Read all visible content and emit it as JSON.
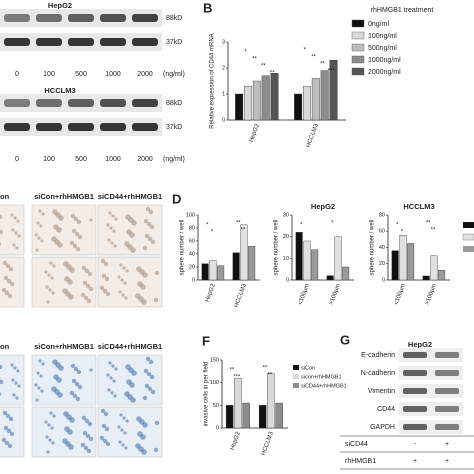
{
  "panel_a": {
    "blots": [
      {
        "cell": "HepG2",
        "markers": [
          "88kD",
          "37kD"
        ]
      },
      {
        "cell": "HCCLM3",
        "markers": [
          "88kD",
          "37kD"
        ]
      }
    ],
    "doses": [
      "0",
      "100",
      "500",
      "1000",
      "2000"
    ],
    "unit": "(ng/ml)"
  },
  "panel_b": {
    "label": "B",
    "chart": {
      "type": "bar",
      "ylabel": "Relative expression of CD44 mRNA",
      "categories": [
        "HepG2",
        "HCCLM3"
      ],
      "legend_title": "rhHMGB1 treatment",
      "series": [
        {
          "name": "0ng/ml",
          "color": "#111111",
          "values": [
            1.0,
            1.0
          ]
        },
        {
          "name": "100ng/ml",
          "color": "#d9d9d9",
          "values": [
            1.3,
            1.3
          ]
        },
        {
          "name": "500ng/ml",
          "color": "#bdbdbd",
          "values": [
            1.5,
            1.6
          ]
        },
        {
          "name": "1000ng/ml",
          "color": "#8c8c8c",
          "values": [
            1.7,
            1.9
          ]
        },
        {
          "name": "2000ng/ml",
          "color": "#555555",
          "values": [
            1.8,
            2.3
          ]
        }
      ],
      "ylim": [
        0,
        3
      ],
      "yticks": [
        0,
        1,
        2,
        3
      ],
      "annotations": [
        "*",
        "*",
        "**",
        "**",
        "**",
        "**",
        "**",
        "***"
      ]
    }
  },
  "panel_c": {
    "columns": [
      "on",
      "siCon+rhHMGB1",
      "siCD44+rhHMGB1"
    ]
  },
  "panel_d": {
    "label": "D",
    "charts": [
      {
        "type": "bar",
        "ylabel": "sphere number / well",
        "categories": [
          "HepG2",
          "HCCLM3"
        ],
        "series": [
          {
            "color": "#111111",
            "values": [
              25,
              42
            ]
          },
          {
            "color": "#e0e0e0",
            "values": [
              30,
              85
            ]
          },
          {
            "color": "#9a9a9a",
            "values": [
              22,
              52
            ]
          }
        ],
        "ylim": [
          0,
          100
        ],
        "yticks": [
          0,
          20,
          40,
          60,
          80,
          100
        ],
        "annotations": [
          "*",
          "**",
          "*",
          "**"
        ]
      },
      {
        "type": "bar",
        "title": "HepG2",
        "ylabel": "sphere number / well",
        "categories": [
          "<100μm",
          ">100μm"
        ],
        "series": [
          {
            "color": "#111111",
            "values": [
              22,
              2
            ]
          },
          {
            "color": "#e0e0e0",
            "values": [
              18,
              20
            ]
          },
          {
            "color": "#9a9a9a",
            "values": [
              14,
              6
            ]
          }
        ],
        "ylim": [
          0,
          30
        ],
        "yticks": [
          0,
          10,
          20,
          30
        ],
        "annotations": [
          "*",
          "*"
        ]
      },
      {
        "type": "bar",
        "title": "HCCLM3",
        "ylabel": "sphere number / well",
        "categories": [
          "<100μm",
          ">100μm"
        ],
        "series": [
          {
            "color": "#111111",
            "values": [
              36,
              5
            ]
          },
          {
            "color": "#e0e0e0",
            "values": [
              55,
              30
            ]
          },
          {
            "color": "#9a9a9a",
            "values": [
              45,
              12
            ]
          }
        ],
        "ylim": [
          0,
          80
        ],
        "yticks": [
          0,
          20,
          40,
          60,
          80
        ],
        "annotations": [
          "*",
          "**",
          "*",
          "**"
        ]
      }
    ]
  },
  "panel_e": {
    "columns": [
      "on",
      "siCon+rhHMGB1",
      "siCD44+rhHMGB1"
    ]
  },
  "panel_f": {
    "label": "F",
    "chart": {
      "type": "bar",
      "ylabel": "invasive cells in per field",
      "categories": [
        "HepG2",
        "HCCLM3"
      ],
      "series": [
        {
          "name": "siCon",
          "color": "#111111",
          "values": [
            50,
            50
          ]
        },
        {
          "name": "sicon+rhHMGB1",
          "color": "#d9d9d9",
          "values": [
            110,
            120
          ]
        },
        {
          "name": "siCD44+rhHMGB1",
          "color": "#8c8c8c",
          "values": [
            55,
            55
          ]
        }
      ],
      "ylim": [
        0,
        150
      ],
      "yticks": [
        0,
        50,
        100,
        150
      ],
      "annotations": [
        "**",
        "**",
        "***",
        "**"
      ]
    }
  },
  "panel_g": {
    "label": "G",
    "title": "HepG2",
    "rows": [
      "E-cadherin",
      "N-cadherin",
      "Vimentin",
      "CD44",
      "GAPDH"
    ],
    "treatments": [
      {
        "name": "siCD44",
        "values": [
          "-",
          "+"
        ]
      },
      {
        "name": "rhHMGB1",
        "values": [
          "+",
          "+"
        ]
      }
    ]
  }
}
